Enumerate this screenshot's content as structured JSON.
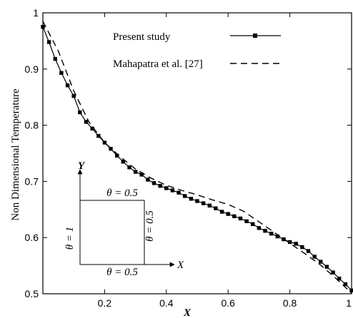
{
  "chart_data": {
    "type": "line",
    "xlabel": "X",
    "ylabel": "Non Dimensional Temperature",
    "xlim": [
      0,
      1
    ],
    "ylim": [
      0.5,
      1
    ],
    "x_ticks": [
      0.2,
      0.4,
      0.6,
      0.8,
      1
    ],
    "x_tick_labels": [
      "0.2",
      "0.4",
      "0.6",
      "0.8",
      "1"
    ],
    "y_ticks": [
      0.5,
      0.6,
      0.7,
      0.8,
      0.9,
      1
    ],
    "y_tick_labels": [
      "0.5",
      "0.6",
      "0.7",
      "0.8",
      "0.9",
      "1"
    ],
    "grid": false,
    "legend_position": "top-right",
    "series": [
      {
        "name": "Present study",
        "style": "solid-square-markers",
        "x": [
          0.0,
          0.02,
          0.04,
          0.06,
          0.08,
          0.1,
          0.12,
          0.14,
          0.16,
          0.18,
          0.2,
          0.22,
          0.24,
          0.26,
          0.28,
          0.3,
          0.32,
          0.34,
          0.36,
          0.38,
          0.4,
          0.42,
          0.44,
          0.46,
          0.48,
          0.5,
          0.52,
          0.54,
          0.56,
          0.58,
          0.6,
          0.62,
          0.64,
          0.66,
          0.68,
          0.7,
          0.72,
          0.74,
          0.76,
          0.78,
          0.8,
          0.82,
          0.84,
          0.86,
          0.88,
          0.9,
          0.92,
          0.94,
          0.96,
          0.98,
          1.0
        ],
        "y": [
          0.975,
          0.948,
          0.918,
          0.893,
          0.871,
          0.852,
          0.823,
          0.806,
          0.794,
          0.781,
          0.769,
          0.758,
          0.746,
          0.735,
          0.725,
          0.717,
          0.712,
          0.703,
          0.697,
          0.692,
          0.688,
          0.684,
          0.68,
          0.674,
          0.669,
          0.665,
          0.661,
          0.657,
          0.652,
          0.646,
          0.642,
          0.638,
          0.634,
          0.629,
          0.624,
          0.617,
          0.612,
          0.607,
          0.602,
          0.597,
          0.592,
          0.589,
          0.583,
          0.576,
          0.566,
          0.557,
          0.548,
          0.538,
          0.527,
          0.517,
          0.506
        ]
      },
      {
        "name": "Mahapatra et al. [27]",
        "style": "dashed",
        "x": [
          0.0,
          0.05,
          0.1,
          0.15,
          0.2,
          0.25,
          0.3,
          0.35,
          0.4,
          0.45,
          0.5,
          0.55,
          0.6,
          0.65,
          0.7,
          0.75,
          0.8,
          0.85,
          0.9,
          0.95,
          1.0
        ],
        "y": [
          0.985,
          0.932,
          0.861,
          0.805,
          0.769,
          0.744,
          0.722,
          0.706,
          0.693,
          0.684,
          0.676,
          0.667,
          0.659,
          0.647,
          0.628,
          0.609,
          0.59,
          0.571,
          0.551,
          0.527,
          0.501
        ]
      }
    ],
    "inset": {
      "y_axis_label": "Y",
      "x_axis_label": "X",
      "top_label": "θ = 0.5",
      "right_label": "θ = 0.5",
      "bottom_label": "θ = 0.5",
      "left_label": "θ = 1"
    }
  }
}
